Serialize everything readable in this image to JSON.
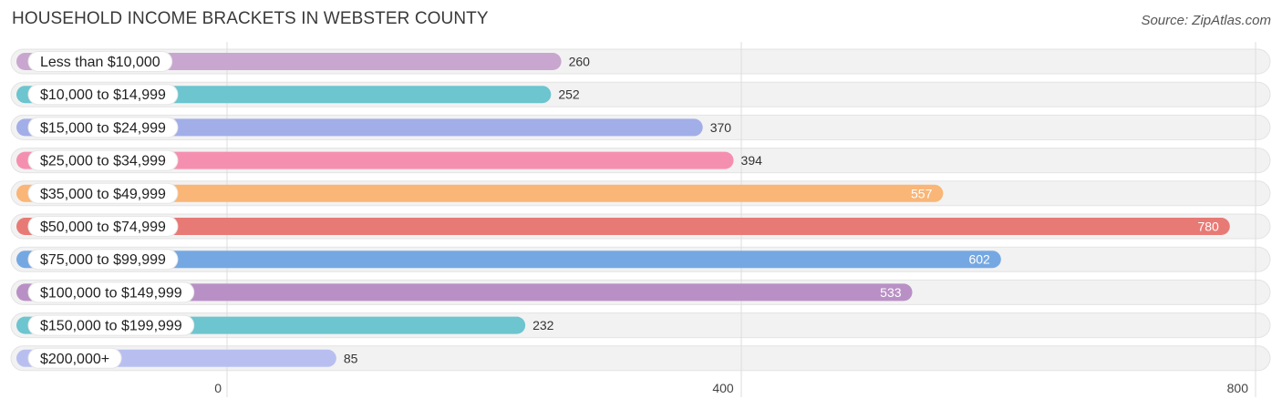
{
  "title": "HOUSEHOLD INCOME BRACKETS IN WEBSTER COUNTY",
  "source": "Source: ZipAtlas.com",
  "chart_data": {
    "type": "bar",
    "orientation": "horizontal",
    "categories": [
      "Less than $10,000",
      "$10,000 to $14,999",
      "$15,000 to $24,999",
      "$25,000 to $34,999",
      "$35,000 to $49,999",
      "$50,000 to $74,999",
      "$75,000 to $99,999",
      "$100,000 to $149,999",
      "$150,000 to $199,999",
      "$200,000+"
    ],
    "values": [
      260,
      252,
      370,
      394,
      557,
      780,
      602,
      533,
      232,
      85
    ],
    "colors": [
      "#c9a6cf",
      "#6cc5cf",
      "#a2aee8",
      "#f58fb0",
      "#f9b677",
      "#e87a75",
      "#75a8e2",
      "#b990c5",
      "#6cc5cf",
      "#b8bff0"
    ],
    "xticks": [
      "0",
      "400",
      "800"
    ],
    "xlim": [
      0,
      800
    ],
    "grid": true
  }
}
